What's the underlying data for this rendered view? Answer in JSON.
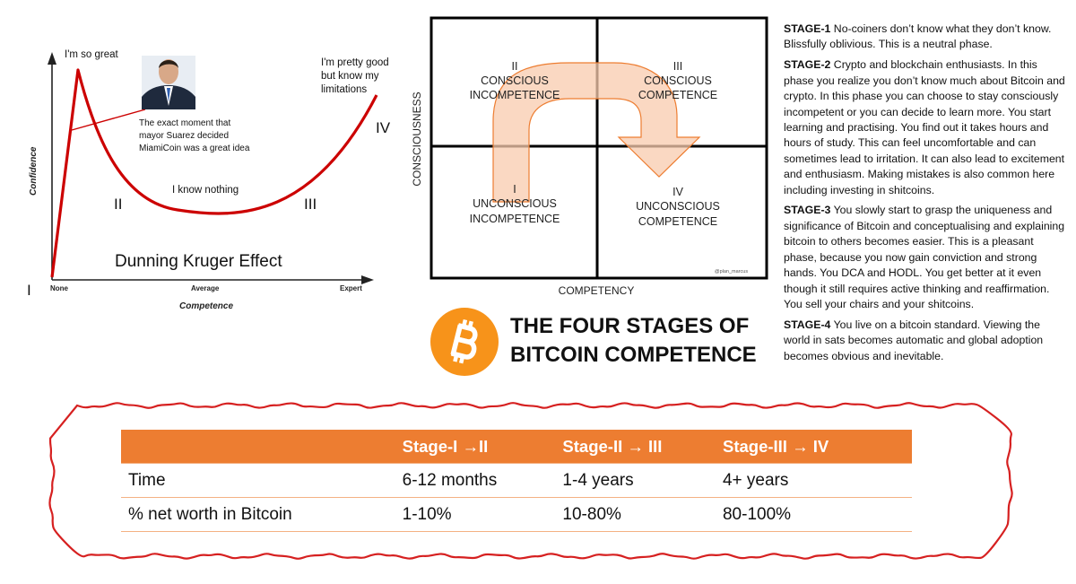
{
  "dunning_kruger": {
    "title": "Dunning Kruger Effect",
    "y_axis_label": "Confidence",
    "x_axis_label": "Competence",
    "x_ticks": [
      "None",
      "Average",
      "Expert"
    ],
    "peak_label": "I'm so great",
    "valley_label": "I know nothing",
    "right_label_lines": [
      "I'm pretty good",
      "but know my",
      "limitations"
    ],
    "annotation_lines": [
      "The exact moment that",
      "mayor Suarez decided",
      "MiamiCoin was a great idea"
    ],
    "roman_I": "I",
    "roman_II": "II",
    "roman_III": "III",
    "roman_IV": "IV",
    "curve_color": "#CC0000"
  },
  "matrix": {
    "y_axis_label": "CONSCIOUSNESS",
    "x_axis_label": "COMPETENCY",
    "credit": "@plan_marcus",
    "quadrants": [
      {
        "numeral": "II",
        "line1": "CONSCIOUS",
        "line2": "INCOMPETENCE"
      },
      {
        "numeral": "III",
        "line1": "CONSCIOUS",
        "line2": "COMPETENCE"
      },
      {
        "numeral": "I",
        "line1": "UNCONSCIOUS",
        "line2": "INCOMPETENCE"
      },
      {
        "numeral": "IV",
        "line1": "UNCONSCIOUS",
        "line2": "COMPETENCE"
      }
    ],
    "arrow_fill": "#F8CBAD",
    "arrow_stroke": "#ED7D31"
  },
  "title": {
    "line1": "THE FOUR STAGES OF",
    "line2": "BITCOIN COMPETENCE",
    "logo_icon": "bitcoin-logo-icon",
    "logo_color": "#F7931A"
  },
  "stages": [
    {
      "label": "STAGE-1",
      "text": " No-coiners don’t know what they don’t know. Blissfully oblivious. This is a neutral phase."
    },
    {
      "label": "STAGE-2",
      "text": " Crypto and blockchain enthusiasts. In this phase you realize you don’t know much about Bitcoin and crypto. In this phase you can choose to stay consciously incompetent or you can decide to learn more. You start learning and practising. You find out it takes hours and hours of study. This can feel uncomfortable and can sometimes lead to irritation. It can also lead to excitement and enthusiasm. Making mistakes is also common here including investing in shitcoins."
    },
    {
      "label": "STAGE-3",
      "text": "  You slowly start to grasp the uniqueness and significance of Bitcoin and conceptualising and explaining bitcoin to others becomes easier. This is a pleasant phase, because you now gain conviction and strong hands. You DCA and HODL. You get better at it even though it still requires active thinking and reaffirmation. You sell your chairs and your shitcoins."
    },
    {
      "label": "STAGE-4",
      "text": " You live on a bitcoin standard. Viewing the world in sats becomes automatic and global adoption becomes obvious and inevitable."
    }
  ],
  "table": {
    "headers": [
      "",
      "Stage-I →II",
      "Stage-II → III",
      "Stage-III → IV"
    ],
    "rows": [
      [
        "Time",
        "6-12 months",
        "1-4 years",
        "4+ years"
      ],
      [
        "% net worth in Bitcoin",
        "1-10%",
        "10-80%",
        "80-100%"
      ]
    ],
    "header_color": "#ED7D31",
    "outline_color": "#D62020"
  }
}
